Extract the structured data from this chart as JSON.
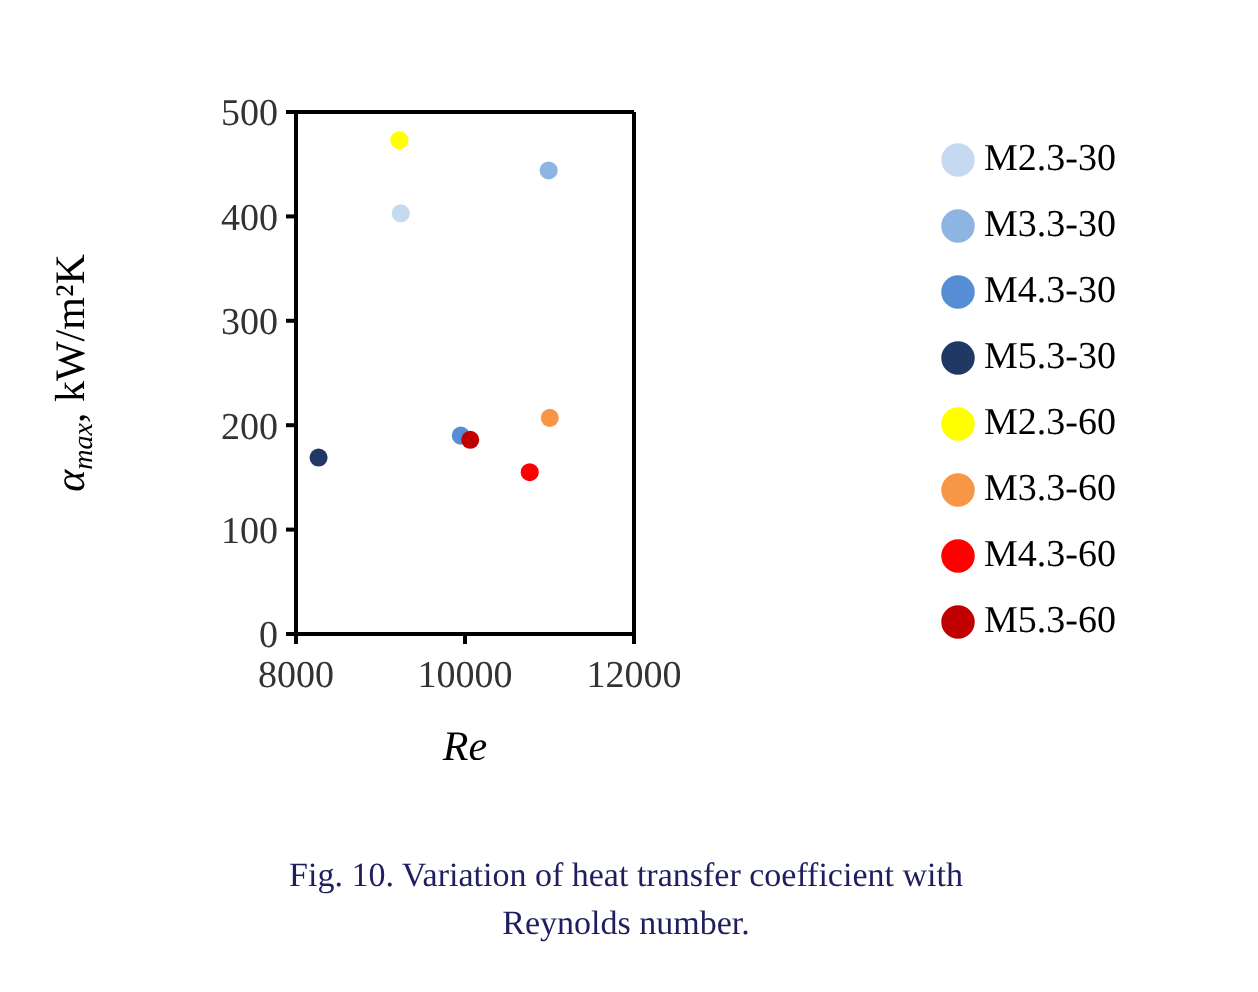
{
  "chart_data": {
    "type": "scatter",
    "xlabel": "Re",
    "ylabel": "α$_{max}$, kW/m²K",
    "xlim": [
      8000,
      12000
    ],
    "xticks": [
      8000,
      10000,
      12000
    ],
    "ylim": [
      0,
      500
    ],
    "yticks": [
      0,
      100,
      200,
      300,
      400,
      500
    ],
    "grid": false,
    "legend": "right",
    "marker": "circle",
    "series": [
      {
        "name": "M2.3-30",
        "color": "#c5d9f1",
        "x": [
          9240
        ],
        "values": [
          403
        ]
      },
      {
        "name": "M3.3-30",
        "color": "#8db4e2",
        "x": [
          10990
        ],
        "values": [
          444
        ]
      },
      {
        "name": "M4.3-30",
        "color": "#558ed5",
        "x": [
          9950
        ],
        "values": [
          190
        ]
      },
      {
        "name": "M5.3-30",
        "color": "#1f3864",
        "x": [
          8267
        ],
        "values": [
          169
        ]
      },
      {
        "name": "M2.3-60",
        "color": "#ffff00",
        "x": [
          9223
        ],
        "values": [
          473
        ]
      },
      {
        "name": "M3.3-60",
        "color": "#f79646",
        "x": [
          11003
        ],
        "values": [
          207
        ]
      },
      {
        "name": "M4.3-60",
        "color": "#ff0000",
        "x": [
          10766
        ],
        "values": [
          155
        ]
      },
      {
        "name": "M5.3-60",
        "color": "#c00000",
        "x": [
          10062
        ],
        "values": [
          186
        ]
      }
    ],
    "annotations": [
      "Fig. 10. Variation of heat transfer coefficient with Reynolds number."
    ]
  }
}
